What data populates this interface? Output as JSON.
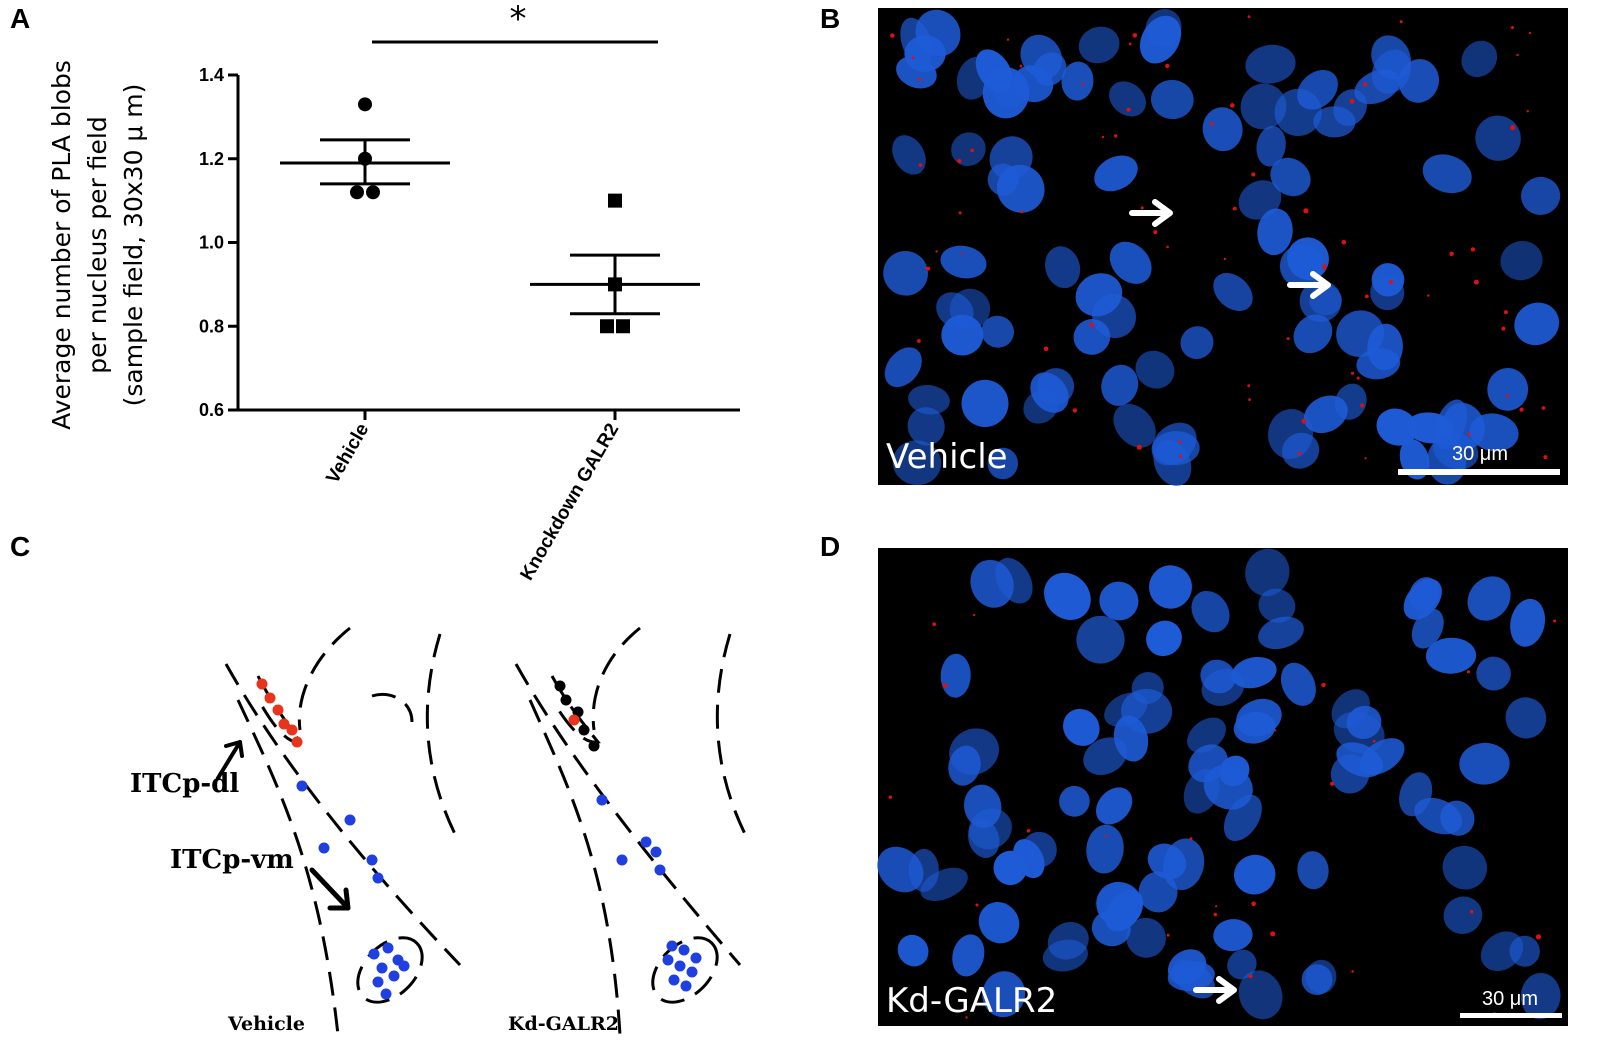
{
  "panels": {
    "a": "A",
    "b": "B",
    "c": "C",
    "d": "D"
  },
  "chart_data": {
    "type": "scatter",
    "ylabel_lines": [
      "Average number of PLA blobs",
      "per nucleus per field",
      "(sample field, 30x30 μ m)"
    ],
    "categories": [
      "Vehicle",
      "Knockdown GALR2"
    ],
    "ylim": [
      0.6,
      1.4
    ],
    "yticks": [
      "0.6",
      "0.8",
      "1.0",
      "1.2",
      "1.4"
    ],
    "significance": "*",
    "series": [
      {
        "category": "Vehicle",
        "marker": "circle",
        "points": [
          1.33,
          1.2,
          1.12,
          1.12
        ],
        "mean": 1.19,
        "sem_low": 1.14,
        "sem_high": 1.245
      },
      {
        "category": "Knockdown GALR2",
        "marker": "square",
        "points": [
          1.1,
          0.9,
          0.8,
          0.8
        ],
        "mean": 0.9,
        "sem_low": 0.83,
        "sem_high": 0.97
      }
    ]
  },
  "micrographs": {
    "b_label": "Vehicle",
    "d_label": "Kd-GALR2",
    "scale_bar": "30 μm",
    "nucleus_color": "#1e5bd6",
    "pla_color": "#e01010",
    "background": "#000000"
  },
  "diagram": {
    "label_dl": "ITCp-dl",
    "label_vm": "ITCp-vm",
    "left_title": "Vehicle",
    "right_title": "Kd-GALR2",
    "red_color": "#e8341c",
    "blue_color": "#1f3fe0",
    "black_color": "#000000"
  }
}
